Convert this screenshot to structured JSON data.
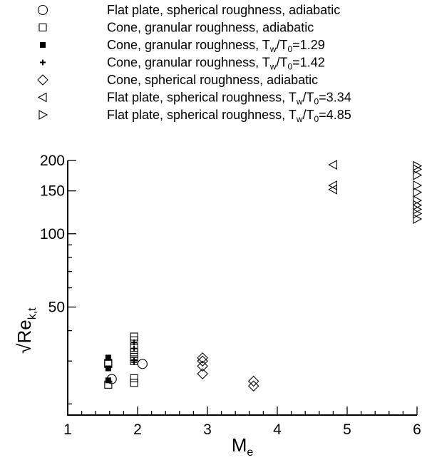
{
  "chart_data": {
    "type": "scatter",
    "title": "",
    "xlabel": {
      "main": "M",
      "sub": "e"
    },
    "ylabel": {
      "prefix": "√Re",
      "sub": "k,t"
    },
    "xlim": [
      1,
      6
    ],
    "ylim": [
      18,
      200
    ],
    "yscale": "log",
    "x_ticks": [
      "1",
      "2",
      "3",
      "4",
      "5",
      "6"
    ],
    "y_ticks": [
      {
        "value": 200,
        "label": "200"
      },
      {
        "value": 150,
        "label": "150"
      },
      {
        "value": 100,
        "label": "100"
      },
      {
        "value": 50,
        "label": "50"
      }
    ],
    "legend_position": "top",
    "series": [
      {
        "name": "Flat plate, spherical roughness, adiabatic",
        "legend_parts": [
          {
            "t": "Flat plate, spherical roughness, adiabatic"
          }
        ],
        "marker": "circle",
        "points": [
          [
            1.63,
            25.3
          ],
          [
            2.07,
            29.2
          ]
        ]
      },
      {
        "name": "Cone, granular roughness, adiabatic",
        "legend_parts": [
          {
            "t": "Cone, granular roughness, adiabatic"
          }
        ],
        "marker": "square",
        "points": [
          [
            1.58,
            24.0
          ],
          [
            1.58,
            29.2
          ],
          [
            1.58,
            29.5
          ],
          [
            1.95,
            24.4
          ],
          [
            1.95,
            25.5
          ],
          [
            1.95,
            30.0
          ],
          [
            1.95,
            31.2
          ],
          [
            1.95,
            32.6
          ],
          [
            1.95,
            34.0
          ],
          [
            1.95,
            36.5
          ],
          [
            1.95,
            37.8
          ]
        ]
      },
      {
        "name": "Cone, granular roughness, T_w/T_0=1.29",
        "legend_parts": [
          {
            "t": "Cone, granular roughness, T"
          },
          {
            "s": "w"
          },
          {
            "t": "/T"
          },
          {
            "s": "0"
          },
          {
            "t": "=1.29"
          }
        ],
        "marker": "filled-square",
        "points": [
          [
            1.58,
            25.0
          ],
          [
            1.58,
            28.0
          ],
          [
            1.58,
            31.0
          ]
        ]
      },
      {
        "name": "Cone, granular roughness, T_w/T_0=1.42",
        "legend_parts": [
          {
            "t": "Cone, granular roughness, T"
          },
          {
            "s": "w"
          },
          {
            "t": "/T"
          },
          {
            "s": "0"
          },
          {
            "t": "=1.42"
          }
        ],
        "marker": "plus",
        "points": [
          [
            1.95,
            29.7
          ],
          [
            1.95,
            30.3
          ],
          [
            1.95,
            33.8
          ],
          [
            1.95,
            35.8
          ]
        ]
      },
      {
        "name": "Cone, spherical roughness, adiabatic",
        "legend_parts": [
          {
            "t": "Cone, spherical roughness, adiabatic"
          }
        ],
        "marker": "diamond",
        "points": [
          [
            2.93,
            26.6
          ],
          [
            2.93,
            28.6
          ],
          [
            2.93,
            30.0
          ],
          [
            2.93,
            30.9
          ],
          [
            3.66,
            23.7
          ],
          [
            3.66,
            24.8
          ]
        ]
      },
      {
        "name": "Flat plate, spherical roughness, T_w/T_0=3.34",
        "legend_parts": [
          {
            "t": "Flat plate, spherical roughness, T"
          },
          {
            "s": "w"
          },
          {
            "t": "/T"
          },
          {
            "s": "0"
          },
          {
            "t": "=3.34"
          }
        ],
        "marker": "triangle-left",
        "points": [
          [
            4.8,
            152
          ],
          [
            4.8,
            158
          ],
          [
            4.8,
            192
          ]
        ]
      },
      {
        "name": "Flat plate, spherical roughness, T_w/T_0=4.85",
        "legend_parts": [
          {
            "t": "Flat plate, spherical roughness, T"
          },
          {
            "s": "w"
          },
          {
            "t": "/T"
          },
          {
            "s": "0"
          },
          {
            "t": "=4.85"
          }
        ],
        "marker": "triangle-right",
        "points": [
          [
            6.0,
            115
          ],
          [
            6.0,
            121
          ],
          [
            6.0,
            126
          ],
          [
            6.0,
            131
          ],
          [
            6.0,
            137
          ],
          [
            6.0,
            148
          ],
          [
            6.0,
            158
          ],
          [
            6.0,
            174
          ],
          [
            6.0,
            184
          ],
          [
            6.0,
            190
          ]
        ]
      }
    ]
  }
}
